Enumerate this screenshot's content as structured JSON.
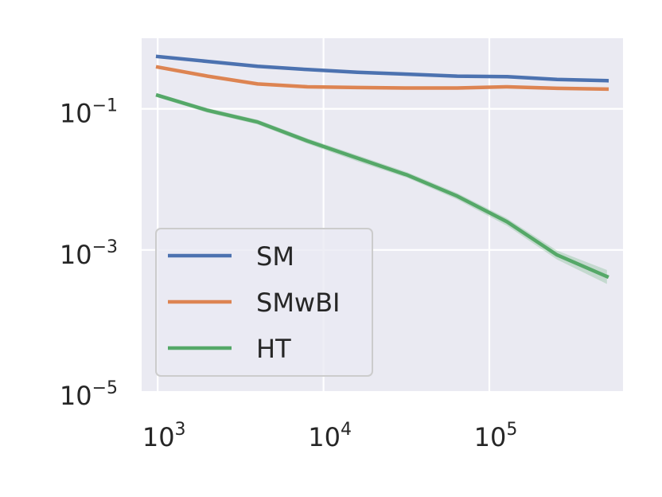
{
  "chart_data": {
    "type": "line",
    "title": "",
    "xlabel": "",
    "ylabel": "",
    "x_scale": "log",
    "y_scale": "log",
    "xlim": [
      800,
      640000
    ],
    "ylim": [
      1e-05,
      1.0
    ],
    "x_ticks": [
      {
        "value": 1000,
        "base": "10",
        "exp": "3"
      },
      {
        "value": 10000,
        "base": "10",
        "exp": "4"
      },
      {
        "value": 100000,
        "base": "10",
        "exp": "5"
      }
    ],
    "y_ticks": [
      {
        "value": 0.1,
        "base": "10",
        "exp": "−1"
      },
      {
        "value": 0.001,
        "base": "10",
        "exp": "−3"
      },
      {
        "value": 1e-05,
        "base": "10",
        "exp": "−5"
      }
    ],
    "grid": true,
    "legend_position": "lower-left",
    "x": [
      1000,
      2000,
      4000,
      8000,
      16000,
      32000,
      64000,
      128000,
      256000,
      512000
    ],
    "series": [
      {
        "name": "SM",
        "color": "#4c72b0",
        "values": [
          0.55,
          0.47,
          0.4,
          0.36,
          0.33,
          0.31,
          0.29,
          0.285,
          0.26,
          0.25
        ]
      },
      {
        "name": "SMwBI",
        "color": "#dd8452",
        "values": [
          0.39,
          0.29,
          0.225,
          0.205,
          0.2,
          0.197,
          0.197,
          0.205,
          0.195,
          0.19
        ]
      },
      {
        "name": "HT",
        "color": "#55a868",
        "values": [
          0.155,
          0.095,
          0.065,
          0.035,
          0.02,
          0.0115,
          0.0058,
          0.0025,
          0.00085,
          0.00042
        ],
        "band_low": [
          0.145,
          0.088,
          0.06,
          0.032,
          0.018,
          0.0105,
          0.0052,
          0.0022,
          0.00073,
          0.00033
        ],
        "band_high": [
          0.165,
          0.102,
          0.07,
          0.038,
          0.022,
          0.0126,
          0.0064,
          0.0028,
          0.00098,
          0.00052
        ]
      }
    ]
  }
}
